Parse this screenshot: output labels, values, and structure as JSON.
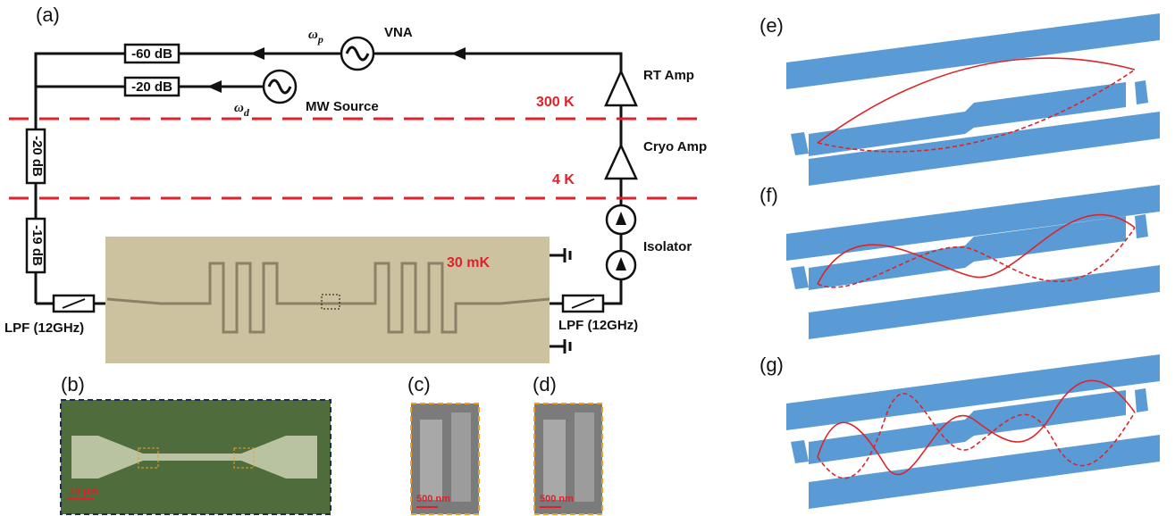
{
  "panel_a": {
    "label": "(a)",
    "pump": {
      "symbol": "ω",
      "subscript": "p"
    },
    "vna": "VNA",
    "att_pump": "-60 dB",
    "att_drive": "-20 dB",
    "drive": {
      "symbol": "ω",
      "subscript": "d"
    },
    "mw_source": "MW Source",
    "rt_amp": "RT Amp",
    "stage_300k": "300 K",
    "cryo_amp": "Cryo Amp",
    "att_4k": "-20 dB",
    "stage_4k": "4 K",
    "att_mk": "-19 dB",
    "isolator": "Isolator",
    "stage_mk": "30 mK",
    "lpf_in": "LPF (12GHz)",
    "lpf_out": "LPF (12GHz)"
  },
  "panel_b": {
    "label": "(b)",
    "scale": "10 μm"
  },
  "panel_c": {
    "label": "(c)",
    "scale": "500 nm"
  },
  "panel_d": {
    "label": "(d)",
    "scale": "500 nm"
  },
  "panel_e": {
    "label": "(e)"
  },
  "panel_f": {
    "label": "(f)"
  },
  "panel_g": {
    "label": "(g)"
  }
}
